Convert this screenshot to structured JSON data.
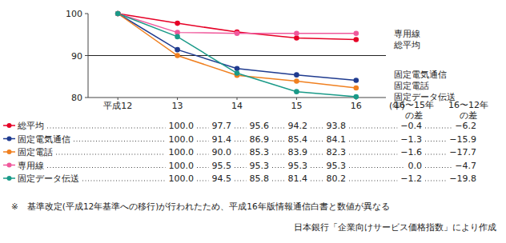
{
  "chart_data": {
    "type": "line",
    "categories": [
      "平成12",
      "13",
      "14",
      "15",
      "16"
    ],
    "x_label": "(年)",
    "ylim": [
      80,
      100
    ],
    "yticks": [
      80,
      90,
      100
    ],
    "grid": true,
    "marker": "circle",
    "diff_headers": [
      [
        "16〜15年",
        "の差"
      ],
      [
        "16〜12年",
        "の差"
      ]
    ],
    "series": [
      {
        "name": "総平均",
        "color": "#e60026",
        "values": [
          100,
          97.7,
          95.6,
          94.2,
          93.8
        ],
        "value_labels": [
          "100.0",
          "97.7",
          "95.6",
          "94.2",
          "93.8"
        ],
        "diffs": [
          -0.4,
          -6.2
        ],
        "diff_labels": [
          "−0.4",
          "−6.2"
        ]
      },
      {
        "name": "固定電気通信",
        "color": "#1f3b8f",
        "values": [
          100,
          91.4,
          86.9,
          85.4,
          84.1
        ],
        "value_labels": [
          "100.0",
          "91.4",
          "86.9",
          "85.4",
          "84.1"
        ],
        "diffs": [
          -1.3,
          -15.9
        ],
        "diff_labels": [
          "−1.3",
          "−15.9"
        ]
      },
      {
        "name": "固定電話",
        "color": "#f08020",
        "values": [
          100,
          90,
          85.3,
          83.9,
          82.3
        ],
        "value_labels": [
          "100.0",
          "90.0",
          "85.3",
          "83.9",
          "82.3"
        ],
        "diffs": [
          -1.6,
          -17.7
        ],
        "diff_labels": [
          "−1.6",
          "−17.7"
        ]
      },
      {
        "name": "専用線",
        "color": "#f0589c",
        "values": [
          100,
          95.5,
          95.3,
          95.3,
          95.3
        ],
        "value_labels": [
          "100.0",
          "95.5",
          "95.3",
          "95.3",
          "95.3"
        ],
        "diffs": [
          0,
          -4.7
        ],
        "diff_labels": [
          "0.0",
          "−4.7"
        ]
      },
      {
        "name": "固定データ伝送",
        "color": "#1a9a88",
        "values": [
          100,
          94.5,
          85.8,
          81.4,
          80.2
        ],
        "value_labels": [
          "100.0",
          "94.5",
          "85.8",
          "81.4",
          "80.2"
        ],
        "diffs": [
          -1.2,
          -19.8
        ],
        "diff_labels": [
          "−1.2",
          "−19.8"
        ]
      }
    ],
    "note": "※　基準改定(平成12年基準への移行)が行われたため、平成16年版情報通信白書と数値が異なる",
    "source": "日本銀行「企業向けサービス価格指数」により作成"
  }
}
